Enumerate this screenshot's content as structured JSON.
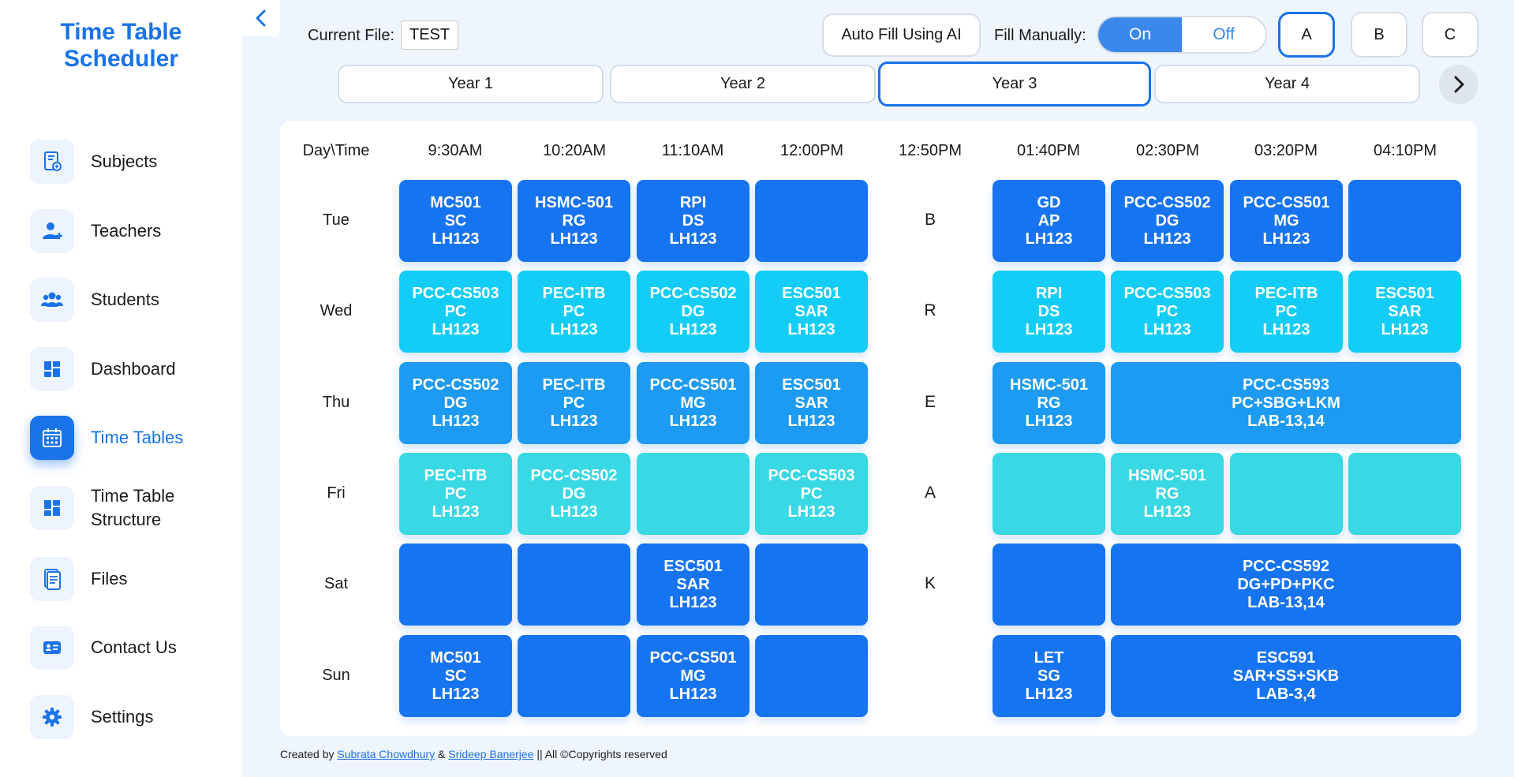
{
  "app": {
    "title_line1": "Time Table",
    "title_line2": "Scheduler"
  },
  "sidebar": {
    "items": [
      {
        "label": "Subjects",
        "icon": "subjects-book-icon"
      },
      {
        "label": "Teachers",
        "icon": "teacher-add-icon"
      },
      {
        "label": "Students",
        "icon": "students-group-icon"
      },
      {
        "label": "Dashboard",
        "icon": "dashboard-grid-icon"
      },
      {
        "label": "Time Tables",
        "icon": "calendar-icon",
        "active": true
      },
      {
        "label": "Time Table Structure",
        "label_line1": "Time Table",
        "label_line2": "Structure",
        "icon": "structure-grid-icon"
      },
      {
        "label": "Files",
        "icon": "file-icon"
      },
      {
        "label": "Contact Us",
        "icon": "contact-card-icon"
      },
      {
        "label": "Settings",
        "icon": "gear-icon"
      }
    ]
  },
  "topbar": {
    "current_file_label": "Current File:",
    "current_file_value": "TEST",
    "auto_fill_label": "Auto Fill Using AI",
    "fill_manually_label": "Fill Manually:",
    "toggle_on": "On",
    "toggle_off": "Off",
    "toggle_value": "On",
    "sections": [
      "A",
      "B",
      "C"
    ],
    "selected_section": "A"
  },
  "years": {
    "tabs": [
      "Year 1",
      "Year 2",
      "Year 3",
      "Year 4"
    ],
    "selected": "Year 3"
  },
  "timetable": {
    "corner_label": "Day\\Time",
    "times": [
      "9:30AM",
      "10:20AM",
      "11:10AM",
      "12:00PM",
      "12:50PM",
      "01:40PM",
      "02:30PM",
      "03:20PM",
      "04:10PM"
    ],
    "days": [
      "Tue",
      "Wed",
      "Thu",
      "Fri",
      "Sat",
      "Sun"
    ],
    "break_letters": [
      "B",
      "R",
      "E",
      "A",
      "K"
    ],
    "rows": [
      [
        "MC501\nSC\nLH123",
        "HSMC-501\nRG\nLH123",
        "RPI\nDS\nLH123",
        "",
        "GD\nAP\nLH123",
        "PCC-CS502\nDG\nLH123",
        "PCC-CS501\nMG\nLH123",
        ""
      ],
      [
        "PCC-CS503\nPC\nLH123",
        "PEC-ITB\nPC\nLH123",
        "PCC-CS502\nDG\nLH123",
        "ESC501\nSAR\nLH123",
        "RPI\nDS\nLH123",
        "PCC-CS503\nPC\nLH123",
        "PEC-ITB\nPC\nLH123",
        "ESC501\nSAR\nLH123"
      ],
      [
        "PCC-CS502\nDG\nLH123",
        "PEC-ITB\nPC\nLH123",
        "PCC-CS501\nMG\nLH123",
        "ESC501\nSAR\nLH123",
        "HSMC-501\nRG\nLH123",
        "PCC-CS593\nPC+SBG+LKM\nLAB-13,14"
      ],
      [
        "PEC-ITB\nPC\nLH123",
        "PCC-CS502\nDG\nLH123",
        "",
        "PCC-CS503\nPC\nLH123",
        "",
        "HSMC-501\nRG\nLH123",
        "",
        ""
      ],
      [
        "",
        "",
        "ESC501\nSAR\nLH123",
        "",
        "",
        "PCC-CS592\nDG+PD+PKC\nLAB-13,14"
      ],
      [
        "MC501\nSC\nLH123",
        "",
        "PCC-CS501\nMG\nLH123",
        "",
        "LET\nSG\nLH123",
        "ESC591\nSAR+SS+SKB\nLAB-3,4"
      ]
    ],
    "row_colors": [
      "#1774f0",
      "#14cdf6",
      "#1d9bf2",
      "#38d8e4",
      "#1774f0",
      "#1774f0"
    ]
  },
  "footer": {
    "prefix": "Created by ",
    "author1": "Subrata Chowdhury",
    "amp": " & ",
    "author2": "Srideep Banerjee",
    "suffix": " || All ©Copyrights reserved"
  }
}
